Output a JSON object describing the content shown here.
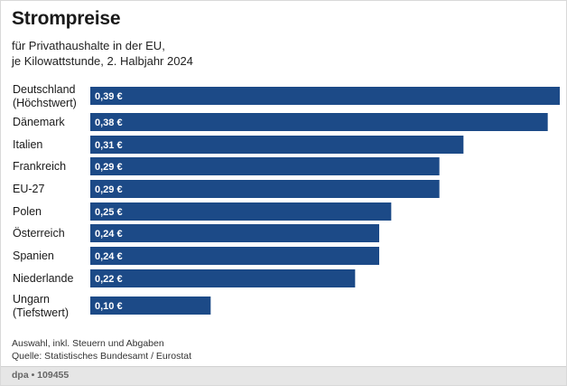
{
  "header": {
    "title": "Strompreise",
    "subtitle_line1": "für Privathaushalte in der EU,",
    "subtitle_line2": "je Kilowattstunde, 2. Halbjahr 2024"
  },
  "notes": {
    "line1": "Auswahl, inkl. Steuern und Abgaben",
    "line2": "Quelle: Statistisches Bundesamt / Eurostat"
  },
  "footer": {
    "credit": "dpa • 109455"
  },
  "chart_data": {
    "type": "bar",
    "orientation": "horizontal",
    "categories": [
      [
        "Deutschland",
        "(Höchstwert)"
      ],
      [
        "Dänemark"
      ],
      [
        "Italien"
      ],
      [
        "Frankreich"
      ],
      [
        "EU-27"
      ],
      [
        "Polen"
      ],
      [
        "Österreich"
      ],
      [
        "Spanien"
      ],
      [
        "Niederlande"
      ],
      [
        "Ungarn",
        "(Tiefstwert)"
      ]
    ],
    "values": [
      0.39,
      0.38,
      0.31,
      0.29,
      0.29,
      0.25,
      0.24,
      0.24,
      0.22,
      0.1
    ],
    "value_labels": [
      "0,39 €",
      "0,38 €",
      "0,31 €",
      "0,29 €",
      "0,29 €",
      "0,25 €",
      "0,24 €",
      "0,24 €",
      "0,22 €",
      "0,10 €"
    ],
    "xlim": [
      0,
      0.39
    ],
    "bar_color": "#1c4a87",
    "grid": false,
    "legend": "none"
  }
}
